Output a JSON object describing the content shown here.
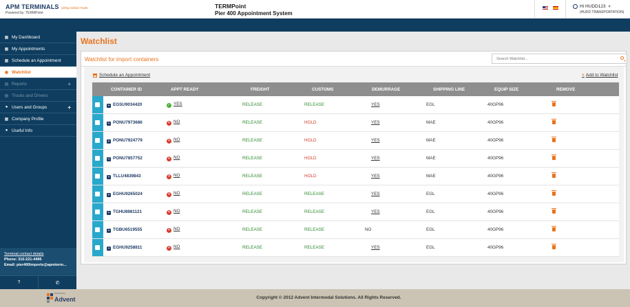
{
  "header": {
    "logo_main": "APM TERMINALS",
    "logo_tagline": "Lifting Global Trade",
    "logo_sub": "Powered by: TERMPoint",
    "app_title": "TERMPoint",
    "app_subtitle": "Pier 400 Appointment System",
    "user_greeting": "Hi HUDD123",
    "user_company": "(HUDD TRANSPORTATION)"
  },
  "sidebar": {
    "items": [
      {
        "label": "My Dashboard",
        "icon": "dashboard-icon"
      },
      {
        "label": "My Appointments",
        "icon": "calendar-icon"
      },
      {
        "label": "Schedule an Appointment",
        "icon": "calendar-plus-icon"
      },
      {
        "label": "Watchlist",
        "icon": "eye-icon"
      },
      {
        "label": "Reports",
        "icon": "report-icon"
      },
      {
        "label": "Trucks and Drivers",
        "icon": "truck-icon"
      },
      {
        "label": "Users and Groups",
        "icon": "users-icon"
      },
      {
        "label": "Company Profile",
        "icon": "building-icon"
      },
      {
        "label": "Useful Info",
        "icon": "info-icon"
      }
    ],
    "contact_title": "Terminal contact details",
    "phone_label": "Phone:",
    "phone": "310-221-4496",
    "email_label": "Email:",
    "email": "pier400imports@apmterm..."
  },
  "main": {
    "page_title": "Watchlist",
    "panel_title": "Watchlist for import containers",
    "search_placeholder": "Search Watchlist...",
    "schedule_link": "Schedule an Appointment",
    "add_link": "Add to Watchlist",
    "columns": [
      "CONTAINER ID",
      "APPT READY",
      "FREIGHT",
      "CUSTOMS",
      "DEMURRAGE",
      "SHIPPING LINE",
      "EQUIP SIZE",
      "REMOVE"
    ],
    "rows": [
      {
        "id": "EGSU9034420",
        "appt": "YES",
        "freight": "RELEASE",
        "customs": "RELEASE",
        "demurrage": "YES",
        "line": "EGL",
        "size": "40GP96"
      },
      {
        "id": "PONU7973686",
        "appt": "NO",
        "freight": "RELEASE",
        "customs": "HOLD",
        "demurrage": "YES",
        "line": "MAE",
        "size": "40GP96"
      },
      {
        "id": "PONU7924779",
        "appt": "NO",
        "freight": "RELEASE",
        "customs": "HOLD",
        "demurrage": "YES",
        "line": "MAE",
        "size": "40GP96"
      },
      {
        "id": "PONU7857752",
        "appt": "NO",
        "freight": "RELEASE",
        "customs": "HOLD",
        "demurrage": "YES",
        "line": "MAE",
        "size": "40GP96"
      },
      {
        "id": "TLLU4839843",
        "appt": "NO",
        "freight": "RELEASE",
        "customs": "HOLD",
        "demurrage": "YES",
        "line": "MAE",
        "size": "40GP96"
      },
      {
        "id": "EGHU9265024",
        "appt": "NO",
        "freight": "RELEASE",
        "customs": "RELEASE",
        "demurrage": "YES",
        "line": "EGL",
        "size": "40GP96"
      },
      {
        "id": "TGHU8981121",
        "appt": "NO",
        "freight": "RELEASE",
        "customs": "RELEASE",
        "demurrage": "YES",
        "line": "EGL",
        "size": "40GP96"
      },
      {
        "id": "TGBU6519555",
        "appt": "NO",
        "freight": "RELEASE",
        "customs": "RELEASE",
        "demurrage": "NO",
        "line": "EGL",
        "size": "40GP96"
      },
      {
        "id": "EGHU9258811",
        "appt": "NO",
        "freight": "RELEASE",
        "customs": "RELEASE",
        "demurrage": "YES",
        "line": "EGL",
        "size": "40GP96"
      }
    ]
  },
  "footer": {
    "powered_by": "Powered by",
    "logo_text": "Advent",
    "copyright": "Copyright © 2012 Advent Intermodal Solutions. All Rights Reserved."
  },
  "colors": {
    "accent": "#e8731d",
    "navy": "#0e3d5f",
    "release": "#2f8a2f",
    "hold": "#d0392b",
    "checkbox": "#29a8cc"
  }
}
